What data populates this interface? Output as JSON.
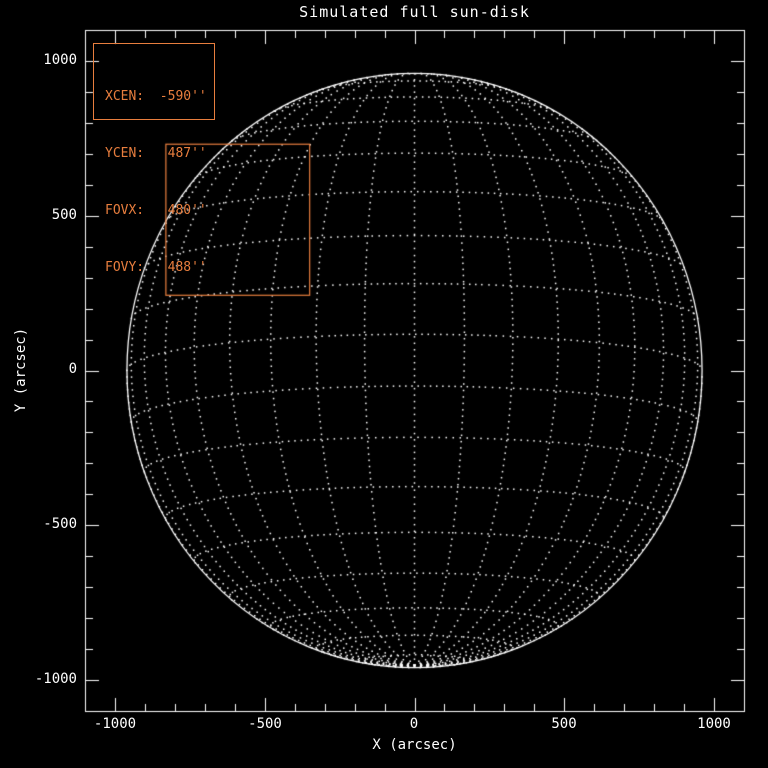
{
  "window": {
    "title": "Simulated full sun-disk"
  },
  "chart_data": {
    "type": "scatter",
    "title": "Simulated full sun-disk",
    "xlabel": "X (arcsec)",
    "ylabel": "Y (arcsec)",
    "xlim": [
      -1100,
      1100
    ],
    "ylim": [
      -1100,
      1100
    ],
    "x_major_ticks": [
      -1000,
      -500,
      0,
      500,
      1000
    ],
    "y_major_ticks": [
      1000,
      500,
      0,
      -500,
      -1000
    ],
    "x_tick_labels": [
      "-1000",
      "-500",
      "0",
      "500",
      "1000"
    ],
    "y_tick_labels": [
      "1000",
      "500",
      "0",
      "-500",
      "-1000"
    ],
    "minor_tick_step": 100,
    "grid": false,
    "frame": "box-with-inward-ticks",
    "legend_position": "none",
    "sun_disk": {
      "radius_arcsec": 960,
      "b0_deg": -7,
      "grid_step_deg": 10,
      "lat_range_deg": [
        -80,
        80
      ],
      "style": "dotted latitude-longitude wireframe, solid limb"
    },
    "fov_box": {
      "xcen_arcsec": -590,
      "ycen_arcsec": 487,
      "fovx_arcsec": 480,
      "fovy_arcsec": 488
    },
    "colors": {
      "background": "#000000",
      "foreground": "#ffffff",
      "accent": "#e87e3e"
    }
  },
  "info_box": {
    "lines": [
      "XCEN:  -590''",
      "YCEN:   487''",
      "FOVX:   480''",
      "FOVY:   488''"
    ]
  }
}
